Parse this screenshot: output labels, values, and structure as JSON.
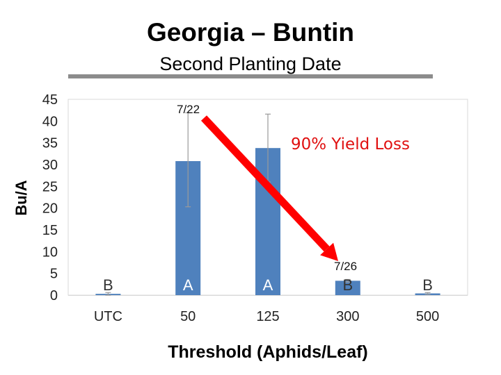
{
  "slide": {
    "title": "Georgia – Buntin",
    "subtitle": "Second Planting Date"
  },
  "chart_data": {
    "type": "bar",
    "categories": [
      "UTC",
      "50",
      "125",
      "300",
      "500"
    ],
    "values": [
      0.3,
      30.8,
      33.8,
      3.3,
      0.4
    ],
    "error_bars": [
      {
        "low": 0,
        "high": 0.6
      },
      {
        "low": 20.3,
        "high": 41.9
      },
      {
        "low": 26,
        "high": 41.6
      },
      {
        "low": 3,
        "high": 3.6
      },
      {
        "low": 0.2,
        "high": 0.6
      }
    ],
    "significance_letters": [
      "B",
      "A",
      "A",
      "B",
      "B"
    ],
    "xlabel": "Threshold (Aphids/Leaf)",
    "ylabel": "Bu/A",
    "ylim": [
      0,
      45
    ],
    "yticks": [
      0,
      5,
      10,
      15,
      20,
      25,
      30,
      35,
      40,
      45
    ],
    "grid": false,
    "bar_color": "#4f81bd",
    "annotations": {
      "arrow_start_label": "7/22",
      "arrow_end_label": "7/26",
      "callout": "90% Yield Loss",
      "arrow_color": "#ff0000"
    }
  }
}
